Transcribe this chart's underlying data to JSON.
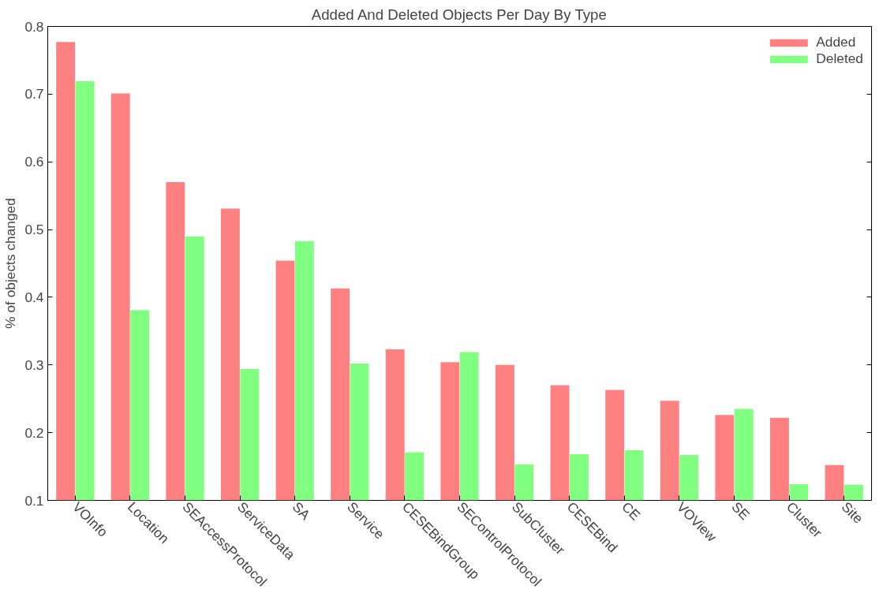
{
  "chart_data": {
    "type": "bar",
    "title": "Added And Deleted Objects Per Day By Type",
    "ylabel": "% of objects changed",
    "categories": [
      "VOInfo",
      "Location",
      "SEAccessProtocol",
      "ServiceData",
      "SA",
      "Service",
      "CESEBindGroup",
      "SEControlProtocol",
      "SubCluster",
      "CESEBind",
      "CE",
      "VOView",
      "SE",
      "Cluster",
      "Site"
    ],
    "series": [
      {
        "name": "Added",
        "color": "#ff8080",
        "values": [
          0.777,
          0.701,
          0.57,
          0.531,
          0.454,
          0.413,
          0.323,
          0.304,
          0.3,
          0.27,
          0.263,
          0.247,
          0.226,
          0.222,
          0.152
        ]
      },
      {
        "name": "Deleted",
        "color": "#80ff80",
        "values": [
          0.719,
          0.381,
          0.49,
          0.294,
          0.483,
          0.302,
          0.171,
          0.319,
          0.153,
          0.168,
          0.174,
          0.167,
          0.235,
          0.124,
          0.123
        ]
      }
    ],
    "ylim": [
      0.1,
      0.8
    ],
    "yticks": [
      0.1,
      0.2,
      0.3,
      0.4,
      0.5,
      0.6,
      0.7,
      0.8
    ],
    "grid": false,
    "legend": "top right"
  }
}
